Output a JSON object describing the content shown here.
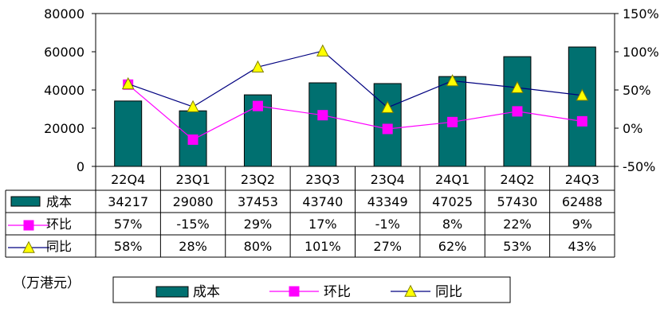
{
  "chart_data": {
    "type": "bar",
    "categories": [
      "22Q4",
      "23Q1",
      "23Q2",
      "23Q3",
      "23Q4",
      "24Q1",
      "24Q2",
      "24Q3"
    ],
    "series": [
      {
        "name": "成本",
        "kind": "bar",
        "axis": "left",
        "values": [
          34217,
          29080,
          37453,
          43740,
          43349,
          47025,
          57430,
          62488
        ],
        "table_labels": [
          "34217",
          "29080",
          "37453",
          "43740",
          "43349",
          "47025",
          "57430",
          "62488"
        ],
        "color": "#007070"
      },
      {
        "name": "环比",
        "kind": "line",
        "axis": "right",
        "marker": "square",
        "values": [
          57,
          -15,
          29,
          17,
          -1,
          8,
          22,
          9
        ],
        "table_labels": [
          "57%",
          "-15%",
          "29%",
          "17%",
          "-1%",
          "8%",
          "22%",
          "9%"
        ],
        "color": "#ff00ff"
      },
      {
        "name": "同比",
        "kind": "line",
        "axis": "right",
        "marker": "triangle",
        "values": [
          58,
          28,
          80,
          101,
          27,
          62,
          53,
          43
        ],
        "table_labels": [
          "58%",
          "28%",
          "80%",
          "101%",
          "27%",
          "62%",
          "53%",
          "43%"
        ],
        "color": "#000080",
        "marker_color": "#ffff00"
      }
    ],
    "left_axis": {
      "min": 0,
      "max": 80000,
      "ticks": [
        0,
        20000,
        40000,
        60000,
        80000
      ]
    },
    "right_axis": {
      "min": -50,
      "max": 150,
      "ticks": [
        -50,
        0,
        50,
        100,
        150
      ],
      "tick_labels": [
        "-50%",
        "0%",
        "50%",
        "100%",
        "150%"
      ]
    },
    "unit_note": "（万港元）",
    "legend": [
      "成本",
      "环比",
      "同比"
    ],
    "legend_position": "bottom",
    "grid": false,
    "data_table": true
  }
}
